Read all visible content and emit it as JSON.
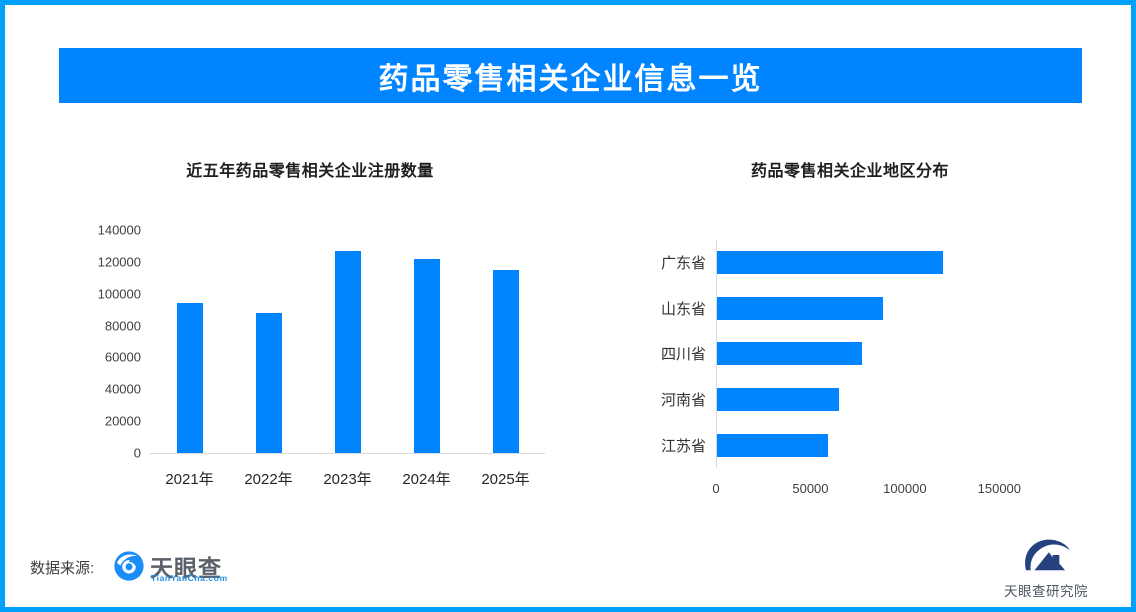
{
  "page": {
    "border_color": "#01a0f8",
    "accent_color": "#0084ff",
    "background": "#ffffff"
  },
  "header": {
    "title": "药品零售相关企业信息一览"
  },
  "chart_data": [
    {
      "type": "bar",
      "title": "近五年药品零售相关企业注册数量",
      "categories": [
        "2021年",
        "2022年",
        "2023年",
        "2024年",
        "2025年"
      ],
      "values": [
        94000,
        88000,
        127000,
        122000,
        115000
      ],
      "ylim": [
        0,
        140000
      ],
      "yticks": [
        0,
        20000,
        40000,
        60000,
        80000,
        100000,
        120000,
        140000
      ],
      "bar_color": "#0084ff",
      "grid": false,
      "legend": "none"
    },
    {
      "type": "bar-horizontal",
      "title": "药品零售相关企业地区分布",
      "categories": [
        "广东省",
        "山东省",
        "四川省",
        "河南省",
        "江苏省"
      ],
      "values": [
        119500,
        88000,
        76500,
        64500,
        59000
      ],
      "xlim": [
        0,
        180000
      ],
      "xticks": [
        0,
        50000,
        100000,
        150000
      ],
      "bar_color": "#0084ff",
      "grid": false,
      "legend": "none"
    }
  ],
  "footer": {
    "source_label": "数据来源:",
    "tianyancha_name": "天眼查",
    "tianyancha_domain": "TianYanCha.com",
    "research_institute": "天眼查研究院",
    "eye_icon": "tianyancha-eye-icon",
    "institute_icon": "mountain-swoosh-icon"
  }
}
